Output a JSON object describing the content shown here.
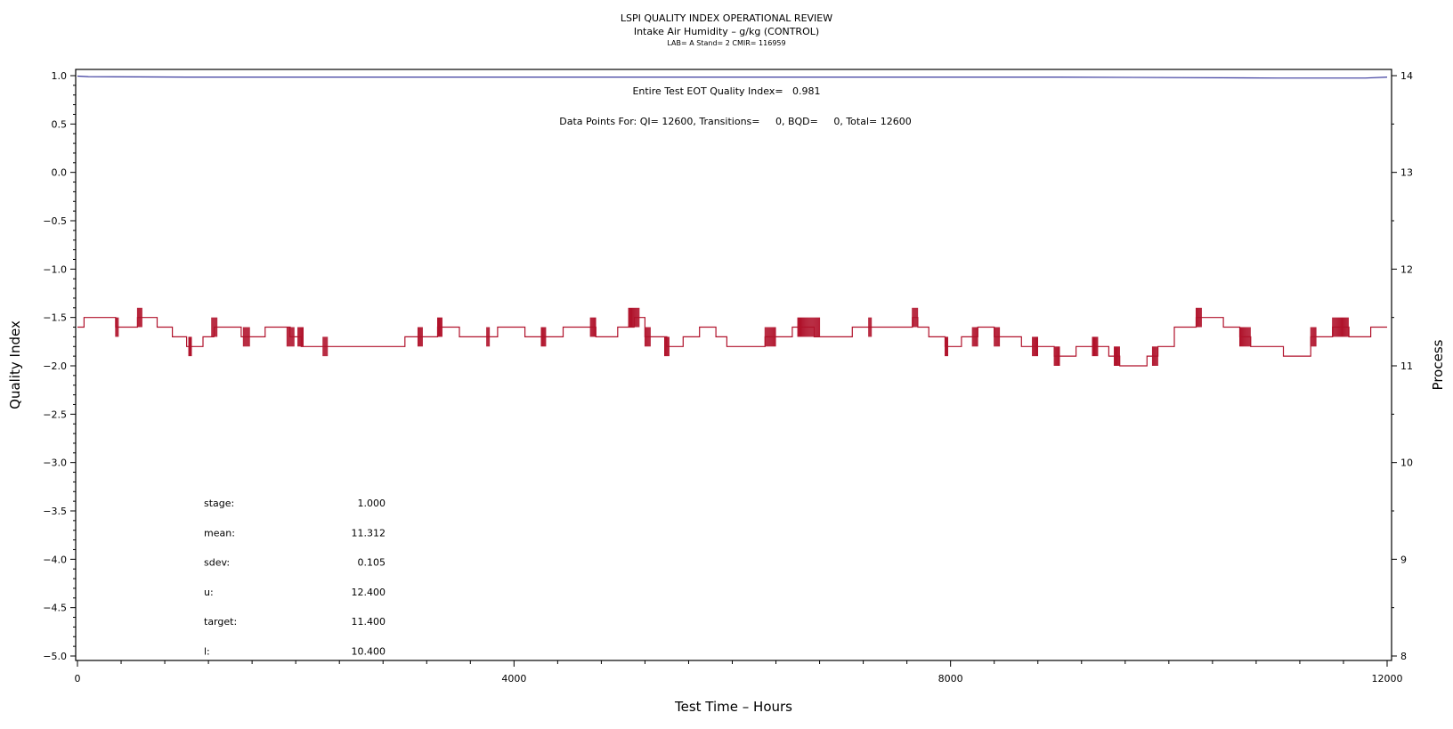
{
  "chart_data": {
    "type": "line",
    "title": "LSPI QUALITY INDEX OPERATIONAL REVIEW",
    "subtitle": "Intake Air Humidity – g/kg (CONTROL)",
    "subsubtitle": "LAB= A Stand= 2 CMIR= 116959",
    "xlabel": "Test Time – Hours",
    "ylabel_left": "Quality Index",
    "ylabel_right": "Process",
    "xlim": [
      0,
      12000
    ],
    "ylim_left": [
      -5.0,
      1.0
    ],
    "ylim_right": [
      8,
      14
    ],
    "x_ticks": [
      0,
      4000,
      8000,
      12000
    ],
    "y_left_ticks": [
      1.0,
      0.5,
      0.0,
      -0.5,
      -1.0,
      -1.5,
      -2.0,
      -2.5,
      -3.0,
      -3.5,
      -4.0,
      -4.5,
      -5.0
    ],
    "y_left_tick_labels": [
      "1.0",
      "0.5",
      "0.0",
      "−0.5",
      "−1.0",
      "−1.5",
      "−2.0",
      "−2.5",
      "−3.0",
      "−3.5",
      "−4.0",
      "−4.5",
      "−5.0"
    ],
    "y_right_ticks": [
      8,
      9,
      10,
      11,
      12,
      13,
      14
    ],
    "annotations": {
      "eot": "Entire Test EOT Quality Index=   0.981",
      "points": "Data Points For: QI= 12600, Transitions=     0, BQD=     0, Total= 12600"
    },
    "stats": [
      {
        "label": "stage:",
        "value": "1.000"
      },
      {
        "label": "mean:",
        "value": "11.312"
      },
      {
        "label": "sdev:",
        "value": "0.105"
      },
      {
        "label": "u:",
        "value": "12.400"
      },
      {
        "label": "target:",
        "value": "11.400"
      },
      {
        "label": "l:",
        "value": "10.400"
      }
    ],
    "series": [
      {
        "axis": "left",
        "color": "#3b3b9e",
        "x": [
          0,
          100,
          1000,
          5000,
          9000,
          11000,
          11800,
          12000
        ],
        "y": [
          0.995,
          0.99,
          0.985,
          0.985,
          0.985,
          0.975,
          0.975,
          0.985
        ]
      },
      {
        "axis": "right",
        "color": "#b0122b",
        "steps": [
          [
            0,
            11.4
          ],
          [
            60,
            11.5
          ],
          [
            350,
            11.4
          ],
          [
            550,
            11.5
          ],
          [
            730,
            11.4
          ],
          [
            870,
            11.3
          ],
          [
            1000,
            11.2
          ],
          [
            1050,
            11.2
          ],
          [
            1150,
            11.3
          ],
          [
            1250,
            11.4
          ],
          [
            1500,
            11.3
          ],
          [
            1720,
            11.4
          ],
          [
            1950,
            11.3
          ],
          [
            2050,
            11.2
          ],
          [
            2300,
            11.2
          ],
          [
            2500,
            11.2
          ],
          [
            2800,
            11.2
          ],
          [
            3000,
            11.3
          ],
          [
            3300,
            11.4
          ],
          [
            3500,
            11.3
          ],
          [
            3850,
            11.4
          ],
          [
            4100,
            11.3
          ],
          [
            4350,
            11.3
          ],
          [
            4450,
            11.4
          ],
          [
            4750,
            11.3
          ],
          [
            4950,
            11.4
          ],
          [
            5100,
            11.5
          ],
          [
            5200,
            11.3
          ],
          [
            5400,
            11.2
          ],
          [
            5550,
            11.3
          ],
          [
            5700,
            11.4
          ],
          [
            5850,
            11.3
          ],
          [
            5950,
            11.2
          ],
          [
            6300,
            11.3
          ],
          [
            6550,
            11.4
          ],
          [
            6750,
            11.3
          ],
          [
            7100,
            11.4
          ],
          [
            7650,
            11.5
          ],
          [
            7700,
            11.4
          ],
          [
            7800,
            11.3
          ],
          [
            7950,
            11.2
          ],
          [
            8100,
            11.3
          ],
          [
            8250,
            11.4
          ],
          [
            8400,
            11.3
          ],
          [
            8650,
            11.2
          ],
          [
            8950,
            11.1
          ],
          [
            9150,
            11.2
          ],
          [
            9450,
            11.1
          ],
          [
            9550,
            11.0
          ],
          [
            9800,
            11.1
          ],
          [
            9900,
            11.2
          ],
          [
            10050,
            11.4
          ],
          [
            10250,
            11.5
          ],
          [
            10500,
            11.4
          ],
          [
            10650,
            11.3
          ],
          [
            10750,
            11.2
          ],
          [
            11050,
            11.1
          ],
          [
            11300,
            11.3
          ],
          [
            11500,
            11.4
          ],
          [
            11650,
            11.3
          ],
          [
            11850,
            11.4
          ],
          [
            12000,
            11.4
          ]
        ],
        "noise_ranges": [
          [
            350,
            380
          ],
          [
            550,
            590
          ],
          [
            1020,
            1050
          ],
          [
            1230,
            1280
          ],
          [
            1520,
            1580
          ],
          [
            1920,
            1990
          ],
          [
            2020,
            2070
          ],
          [
            2250,
            2290
          ],
          [
            3120,
            3160
          ],
          [
            3300,
            3340
          ],
          [
            3750,
            3780
          ],
          [
            4250,
            4290
          ],
          [
            4700,
            4750
          ],
          [
            5050,
            5150
          ],
          [
            5200,
            5250
          ],
          [
            5380,
            5420
          ],
          [
            6300,
            6400
          ],
          [
            6600,
            6800
          ],
          [
            7250,
            7280
          ],
          [
            7650,
            7700
          ],
          [
            7950,
            7980
          ],
          [
            8200,
            8250
          ],
          [
            8400,
            8450
          ],
          [
            8750,
            8800
          ],
          [
            8950,
            9000
          ],
          [
            9300,
            9350
          ],
          [
            9500,
            9550
          ],
          [
            9850,
            9900
          ],
          [
            10250,
            10300
          ],
          [
            10650,
            10750
          ],
          [
            11300,
            11350
          ],
          [
            11500,
            11650
          ]
        ]
      }
    ]
  }
}
